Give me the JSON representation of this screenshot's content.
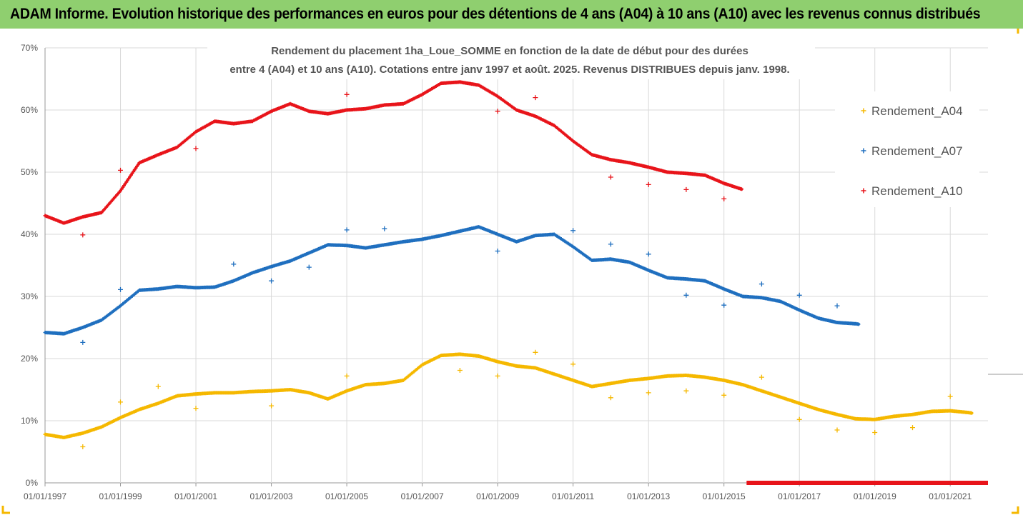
{
  "header": {
    "title": "ADAM Informe. Evolution historique des performances en euros pour des détentions de 4 ans (A04) à 10 ans (A10) avec les revenus connus distribués"
  },
  "chart_data": {
    "type": "scatter",
    "title_line1": "Rendement du placement 1ha_Loue_SOMME en fonction de la date de début pour des durées",
    "title_line2": "entre 4 (A04) et 10 ans (A10). Cotations entre janv 1997 et août. 2025. Revenus DISTRIBUES depuis janv. 1998.",
    "x_range": [
      1997.0,
      2022.0
    ],
    "ylim": [
      0,
      0.7
    ],
    "y_ticks": [
      "0%",
      "10%",
      "20%",
      "30%",
      "40%",
      "50%",
      "60%",
      "70%"
    ],
    "x_ticks": [
      "01/01/1997",
      "01/01/1999",
      "01/01/2001",
      "01/01/2003",
      "01/01/2005",
      "01/01/2007",
      "01/01/2009",
      "01/01/2011",
      "01/01/2013",
      "01/01/2015",
      "01/01/2017",
      "01/01/2019",
      "01/01/2021"
    ],
    "grid": true,
    "legend_position": "right",
    "series": [
      {
        "name": "Rendement_A04",
        "color": "#f5b800",
        "line": [
          [
            1997.0,
            0.078
          ],
          [
            1997.5,
            0.073
          ],
          [
            1998.0,
            0.08
          ],
          [
            1998.5,
            0.09
          ],
          [
            1999.0,
            0.105
          ],
          [
            1999.5,
            0.118
          ],
          [
            2000.0,
            0.128
          ],
          [
            2000.5,
            0.14
          ],
          [
            2001.0,
            0.143
          ],
          [
            2001.5,
            0.145
          ],
          [
            2002.0,
            0.145
          ],
          [
            2002.5,
            0.147
          ],
          [
            2003.0,
            0.148
          ],
          [
            2003.5,
            0.15
          ],
          [
            2004.0,
            0.145
          ],
          [
            2004.5,
            0.135
          ],
          [
            2005.0,
            0.148
          ],
          [
            2005.5,
            0.158
          ],
          [
            2006.0,
            0.16
          ],
          [
            2006.5,
            0.165
          ],
          [
            2007.0,
            0.19
          ],
          [
            2007.5,
            0.205
          ],
          [
            2008.0,
            0.207
          ],
          [
            2008.5,
            0.204
          ],
          [
            2009.0,
            0.195
          ],
          [
            2009.5,
            0.188
          ],
          [
            2010.0,
            0.185
          ],
          [
            2010.5,
            0.175
          ],
          [
            2011.0,
            0.165
          ],
          [
            2011.5,
            0.155
          ],
          [
            2012.0,
            0.16
          ],
          [
            2012.5,
            0.165
          ],
          [
            2013.0,
            0.168
          ],
          [
            2013.5,
            0.172
          ],
          [
            2014.0,
            0.173
          ],
          [
            2014.5,
            0.17
          ],
          [
            2015.0,
            0.165
          ],
          [
            2015.5,
            0.158
          ],
          [
            2016.0,
            0.148
          ],
          [
            2016.5,
            0.138
          ],
          [
            2017.0,
            0.128
          ],
          [
            2017.5,
            0.118
          ],
          [
            2018.0,
            0.11
          ],
          [
            2018.5,
            0.103
          ],
          [
            2019.0,
            0.102
          ],
          [
            2019.5,
            0.107
          ],
          [
            2020.0,
            0.11
          ],
          [
            2020.5,
            0.115
          ],
          [
            2021.0,
            0.116
          ],
          [
            2021.5,
            0.113
          ],
          [
            2021.6,
            0.112
          ]
        ],
        "outliers": [
          [
            1998.0,
            0.058
          ],
          [
            1999.0,
            0.13
          ],
          [
            2000.0,
            0.155
          ],
          [
            2001.0,
            0.12
          ],
          [
            2003.0,
            0.124
          ],
          [
            2005.0,
            0.172
          ],
          [
            2008.0,
            0.181
          ],
          [
            2009.0,
            0.172
          ],
          [
            2010.0,
            0.21
          ],
          [
            2011.0,
            0.191
          ],
          [
            2012.0,
            0.137
          ],
          [
            2013.0,
            0.145
          ],
          [
            2014.0,
            0.148
          ],
          [
            2015.0,
            0.141
          ],
          [
            2016.0,
            0.17
          ],
          [
            2017.0,
            0.102
          ],
          [
            2018.0,
            0.085
          ],
          [
            2019.0,
            0.081
          ],
          [
            2020.0,
            0.089
          ],
          [
            2021.0,
            0.139
          ]
        ]
      },
      {
        "name": "Rendement_A07",
        "color": "#1f6fbf",
        "line": [
          [
            1997.0,
            0.242
          ],
          [
            1997.5,
            0.24
          ],
          [
            1998.0,
            0.25
          ],
          [
            1998.5,
            0.262
          ],
          [
            1999.0,
            0.285
          ],
          [
            1999.5,
            0.31
          ],
          [
            2000.0,
            0.312
          ],
          [
            2000.5,
            0.316
          ],
          [
            2001.0,
            0.314
          ],
          [
            2001.5,
            0.315
          ],
          [
            2002.0,
            0.325
          ],
          [
            2002.5,
            0.338
          ],
          [
            2003.0,
            0.348
          ],
          [
            2003.5,
            0.357
          ],
          [
            2004.0,
            0.37
          ],
          [
            2004.5,
            0.383
          ],
          [
            2005.0,
            0.382
          ],
          [
            2005.5,
            0.378
          ],
          [
            2006.0,
            0.383
          ],
          [
            2006.5,
            0.388
          ],
          [
            2007.0,
            0.392
          ],
          [
            2007.5,
            0.398
          ],
          [
            2008.0,
            0.405
          ],
          [
            2008.5,
            0.412
          ],
          [
            2009.0,
            0.4
          ],
          [
            2009.5,
            0.388
          ],
          [
            2010.0,
            0.398
          ],
          [
            2010.5,
            0.4
          ],
          [
            2011.0,
            0.38
          ],
          [
            2011.5,
            0.358
          ],
          [
            2012.0,
            0.36
          ],
          [
            2012.5,
            0.355
          ],
          [
            2013.0,
            0.342
          ],
          [
            2013.5,
            0.33
          ],
          [
            2014.0,
            0.328
          ],
          [
            2014.5,
            0.325
          ],
          [
            2015.0,
            0.312
          ],
          [
            2015.5,
            0.3
          ],
          [
            2016.0,
            0.298
          ],
          [
            2016.5,
            0.292
          ],
          [
            2017.0,
            0.278
          ],
          [
            2017.5,
            0.265
          ],
          [
            2018.0,
            0.258
          ],
          [
            2018.5,
            0.256
          ],
          [
            2018.6,
            0.255
          ]
        ],
        "outliers": [
          [
            1998.0,
            0.226
          ],
          [
            1999.0,
            0.311
          ],
          [
            2002.0,
            0.352
          ],
          [
            2003.0,
            0.325
          ],
          [
            2004.0,
            0.347
          ],
          [
            2005.0,
            0.407
          ],
          [
            2006.0,
            0.409
          ],
          [
            2009.0,
            0.373
          ],
          [
            2011.0,
            0.406
          ],
          [
            2012.0,
            0.384
          ],
          [
            2013.0,
            0.368
          ],
          [
            2014.0,
            0.302
          ],
          [
            2015.0,
            0.286
          ],
          [
            2016.0,
            0.32
          ],
          [
            2017.0,
            0.302
          ],
          [
            2018.0,
            0.285
          ]
        ]
      },
      {
        "name": "Rendement_A10",
        "color": "#e8141a",
        "line": [
          [
            1997.0,
            0.43
          ],
          [
            1997.5,
            0.418
          ],
          [
            1998.0,
            0.428
          ],
          [
            1998.5,
            0.435
          ],
          [
            1999.0,
            0.47
          ],
          [
            1999.5,
            0.515
          ],
          [
            2000.0,
            0.528
          ],
          [
            2000.5,
            0.54
          ],
          [
            2001.0,
            0.565
          ],
          [
            2001.5,
            0.582
          ],
          [
            2002.0,
            0.578
          ],
          [
            2002.5,
            0.582
          ],
          [
            2003.0,
            0.598
          ],
          [
            2003.5,
            0.61
          ],
          [
            2004.0,
            0.598
          ],
          [
            2004.5,
            0.594
          ],
          [
            2005.0,
            0.6
          ],
          [
            2005.5,
            0.602
          ],
          [
            2006.0,
            0.608
          ],
          [
            2006.5,
            0.61
          ],
          [
            2007.0,
            0.625
          ],
          [
            2007.5,
            0.643
          ],
          [
            2008.0,
            0.645
          ],
          [
            2008.5,
            0.64
          ],
          [
            2009.0,
            0.622
          ],
          [
            2009.5,
            0.6
          ],
          [
            2010.0,
            0.59
          ],
          [
            2010.5,
            0.575
          ],
          [
            2011.0,
            0.55
          ],
          [
            2011.5,
            0.528
          ],
          [
            2012.0,
            0.52
          ],
          [
            2012.5,
            0.515
          ],
          [
            2013.0,
            0.508
          ],
          [
            2013.5,
            0.5
          ],
          [
            2014.0,
            0.498
          ],
          [
            2014.5,
            0.495
          ],
          [
            2015.0,
            0.482
          ],
          [
            2015.5,
            0.472
          ]
        ],
        "outliers": [
          [
            1998.0,
            0.399
          ],
          [
            1999.0,
            0.503
          ],
          [
            2001.0,
            0.538
          ],
          [
            2005.0,
            0.625
          ],
          [
            2009.0,
            0.598
          ],
          [
            2010.0,
            0.62
          ],
          [
            2012.0,
            0.492
          ],
          [
            2013.0,
            0.48
          ],
          [
            2014.0,
            0.472
          ],
          [
            2015.0,
            0.457
          ]
        ],
        "zero_run": [
          2015.6,
          2022.0
        ]
      }
    ]
  }
}
